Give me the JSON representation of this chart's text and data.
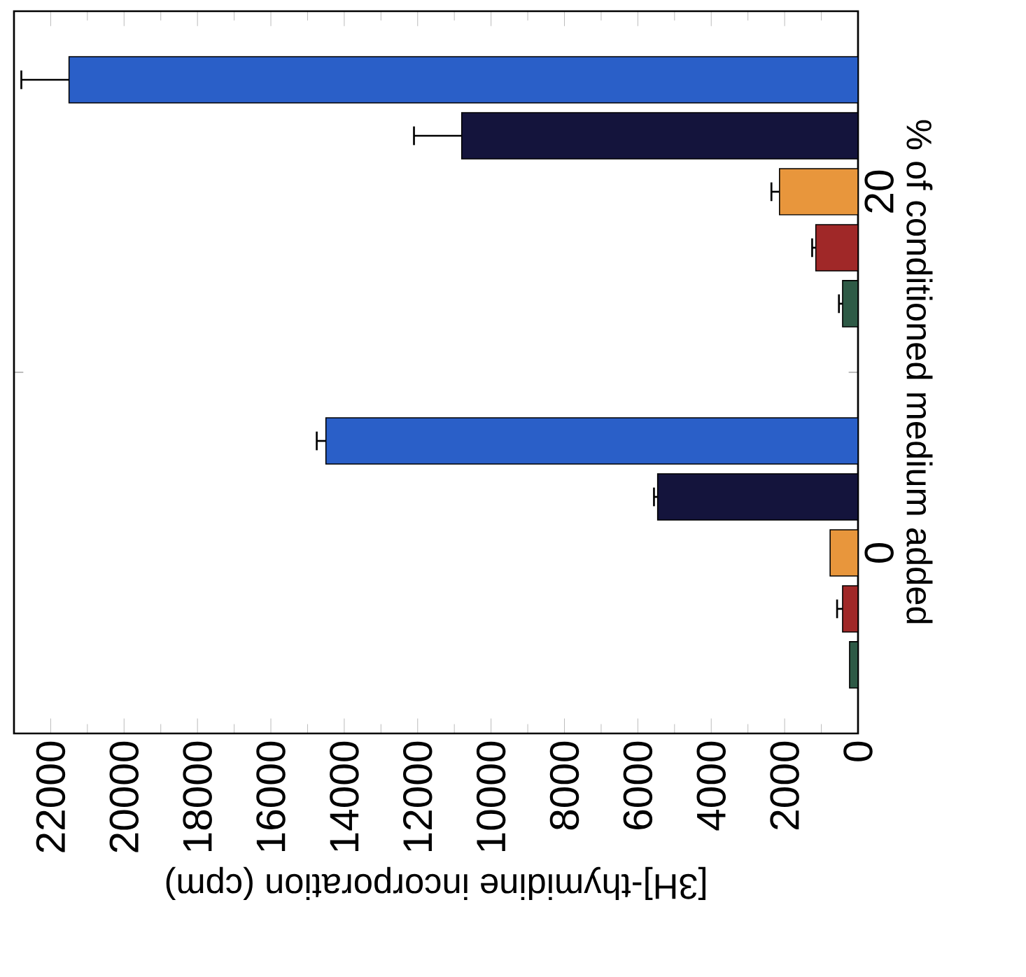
{
  "chart_data": {
    "type": "bar",
    "orientation": "horizontal",
    "xlabel": "[3H]-thymidine incorporation (cpm)",
    "ylabel": "% of conditioned medium added",
    "categories": [
      "20",
      "0"
    ],
    "series": [
      {
        "color": "#2e5a46",
        "values": [
          420,
          230
        ],
        "errors": [
          100,
          null
        ]
      },
      {
        "color": "#a02828",
        "values": [
          1150,
          420
        ],
        "errors": [
          100,
          150
        ]
      },
      {
        "color": "#e8963c",
        "values": [
          2140,
          760
        ],
        "errors": [
          220,
          null
        ]
      },
      {
        "color": "#14143c",
        "values": [
          10800,
          5460
        ],
        "errors": [
          1300,
          100
        ]
      },
      {
        "color": "#2a5fc8",
        "values": [
          21500,
          14500
        ],
        "errors": [
          1300,
          250
        ]
      }
    ],
    "xlim": [
      23000,
      0
    ],
    "xticks": [
      0,
      2000,
      4000,
      6000,
      8000,
      10000,
      12000,
      14000,
      16000,
      18000,
      20000,
      22000
    ]
  }
}
